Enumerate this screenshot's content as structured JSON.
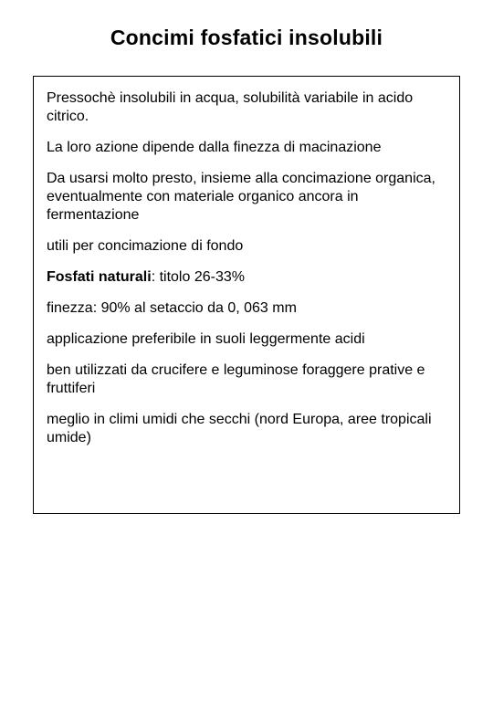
{
  "title": "Concimi fosfatici insolubili",
  "paragraphs": [
    {
      "text": "Pressochè insolubili in acqua, solubilità variabile in acido citrico."
    },
    {
      "text": "La loro azione dipende dalla finezza di macinazione"
    },
    {
      "text": "Da usarsi molto presto, insieme alla concimazione organica, eventualmente con materiale organico ancora in fermentazione"
    },
    {
      "text": "utili per concimazione di fondo"
    },
    {
      "bold_prefix": "Fosfati naturali",
      "text": ": titolo 26-33%"
    },
    {
      "text": "finezza: 90% al setaccio da 0, 063 mm"
    },
    {
      "text": "applicazione preferibile in suoli leggermente acidi"
    },
    {
      "text": "ben utilizzati da crucifere e leguminose foraggere prative e fruttiferi"
    },
    {
      "text": "meglio in climi umidi che secchi (nord Europa, aree tropicali umide)"
    }
  ],
  "style": {
    "background_color": "#ffffff",
    "text_color": "#000000",
    "border_color": "#000000",
    "title_fontsize": 23,
    "body_fontsize": 16,
    "box_min_height": 480
  }
}
